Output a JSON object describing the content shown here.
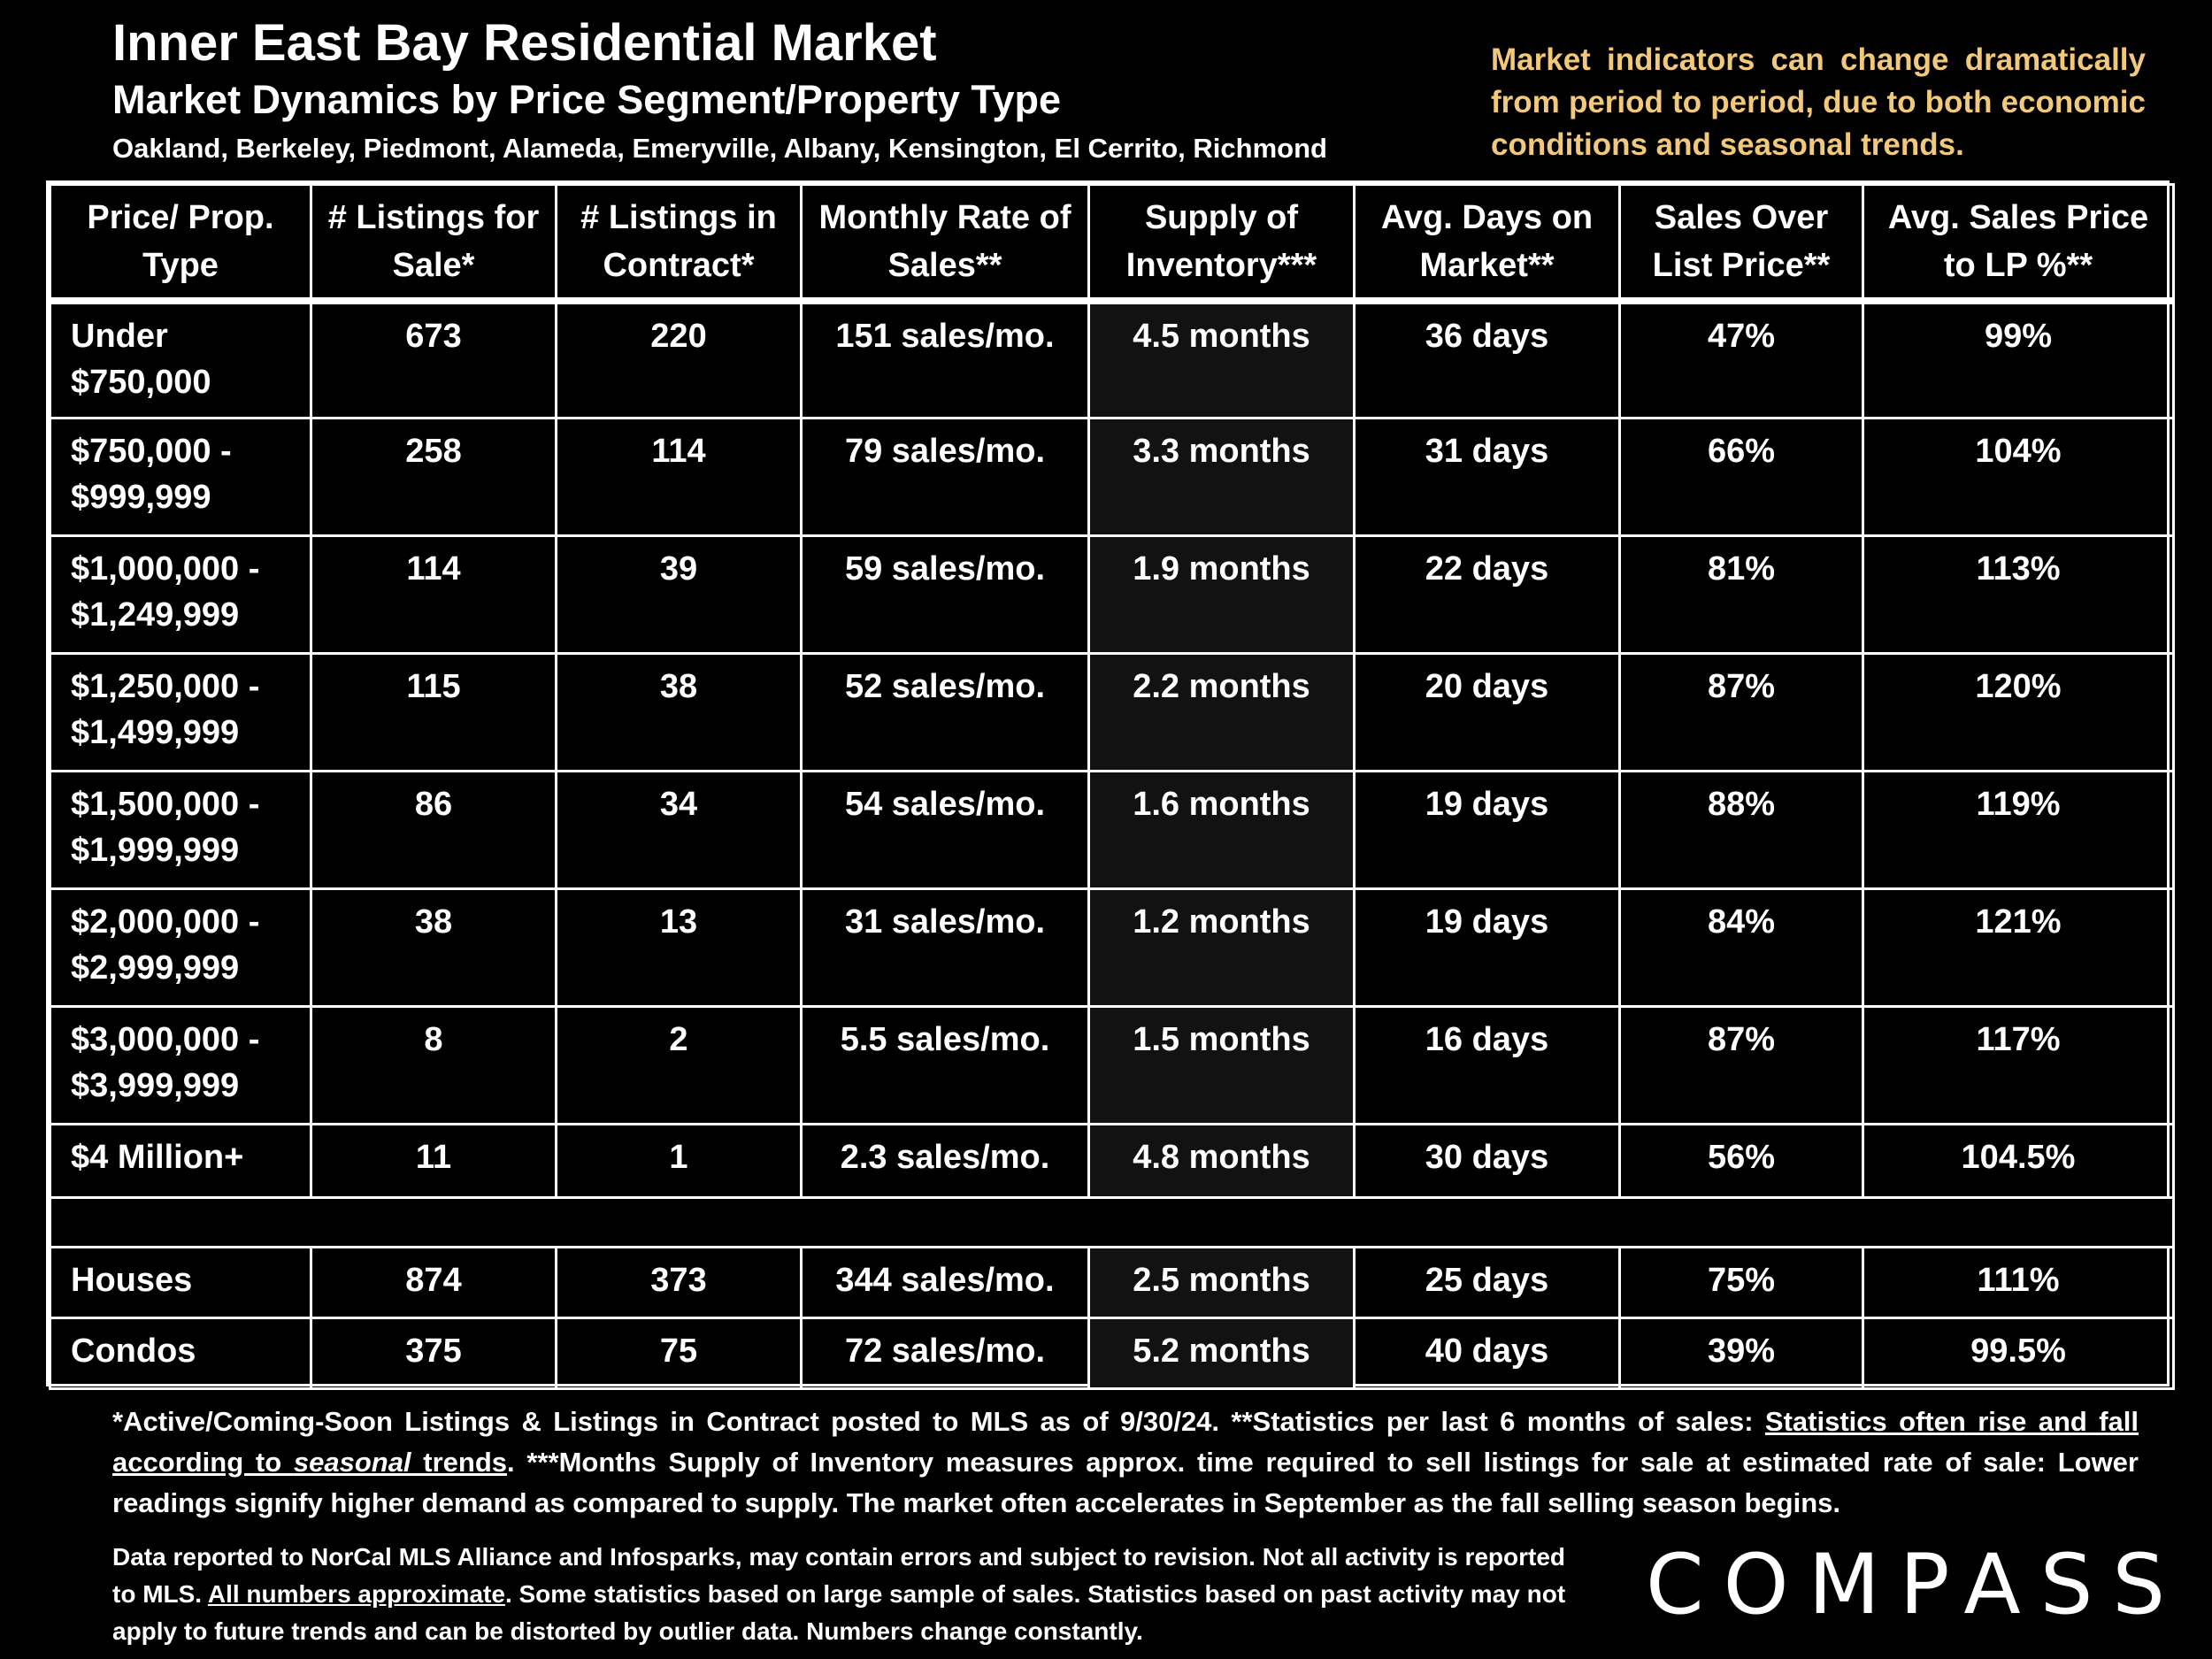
{
  "header": {
    "title": "Inner East Bay Residential Market",
    "subtitle": "Market Dynamics by Price Segment/Property Type",
    "cities": "Oakland, Berkeley, Piedmont, Alameda, Emeryville, Albany, Kensington, El Cerrito, Richmond",
    "disclaimer": "Market indicators can change dramatically from period to period, due to both economic conditions and seasonal trends."
  },
  "table": {
    "headers": [
      "Price/ Prop. Type",
      "# Listings for Sale*",
      "# Listings in Contract*",
      "Monthly Rate of Sales**",
      "Supply of Inventory***",
      "Avg. Days on Market**",
      "Sales Over List Price**",
      "Avg. Sales Price to LP %**"
    ],
    "rows": [
      [
        "Under $750,000",
        "673",
        "220",
        "151 sales/mo.",
        "4.5 months",
        "36 days",
        "47%",
        "99%"
      ],
      [
        "$750,000 - $999,999",
        "258",
        "114",
        "79 sales/mo.",
        "3.3 months",
        "31 days",
        "66%",
        "104%"
      ],
      [
        "$1,000,000 - $1,249,999",
        "114",
        "39",
        "59 sales/mo.",
        "1.9 months",
        "22 days",
        "81%",
        "113%"
      ],
      [
        "$1,250,000 - $1,499,999",
        "115",
        "38",
        "52 sales/mo.",
        "2.2 months",
        "20 days",
        "87%",
        "120%"
      ],
      [
        "$1,500,000 - $1,999,999",
        "86",
        "34",
        "54 sales/mo.",
        "1.6 months",
        "19 days",
        "88%",
        "119%"
      ],
      [
        "$2,000,000 - $2,999,999",
        "38",
        "13",
        "31 sales/mo.",
        "1.2 months",
        "19 days",
        "84%",
        "121%"
      ],
      [
        "$3,000,000 - $3,999,999",
        "8",
        "2",
        "5.5 sales/mo.",
        "1.5 months",
        "16 days",
        "87%",
        "117%"
      ],
      [
        "$4 Million+",
        "11",
        "1",
        "2.3 sales/mo.",
        "4.8 months",
        "30 days",
        "56%",
        "104.5%"
      ]
    ],
    "type_rows": [
      [
        "Houses",
        "874",
        "373",
        "344 sales/mo.",
        "2.5 months",
        "25 days",
        "75%",
        "111%"
      ],
      [
        "Condos",
        "375",
        "75",
        "72 sales/mo.",
        "5.2 months",
        "40 days",
        "39%",
        "99.5%"
      ]
    ]
  },
  "footnote": {
    "part1": "*Active/Coming-Soon Listings & Listings in Contract posted to MLS as of 9/30/24. **Statistics per last 6 months of sales: ",
    "underlined_a": "Statistics often rise and fall according to ",
    "underlined_italic": "seasonal",
    "underlined_b": " trends",
    "part2": ".  ***Months Supply of Inventory measures approx. time required to sell listings for sale at estimated rate of sale:  Lower readings signify higher demand as compared to supply. The market often accelerates in September as the fall selling season begins."
  },
  "bottom_note": {
    "part1": "Data reported to NorCal MLS Alliance and Infosparks, may contain errors and subject to revision.  Not all activity is reported to MLS. ",
    "underlined": "All numbers approximate",
    "part2": ". Some statistics based on large sample of sales. Statistics based on past activity may not apply to future trends and can be distorted by outlier data. Numbers change constantly."
  },
  "logo": {
    "text": "COMPASS"
  },
  "colors": {
    "background": "#000000",
    "text": "#ffffff",
    "accent": "#f2c97a",
    "shade": "#121212"
  }
}
